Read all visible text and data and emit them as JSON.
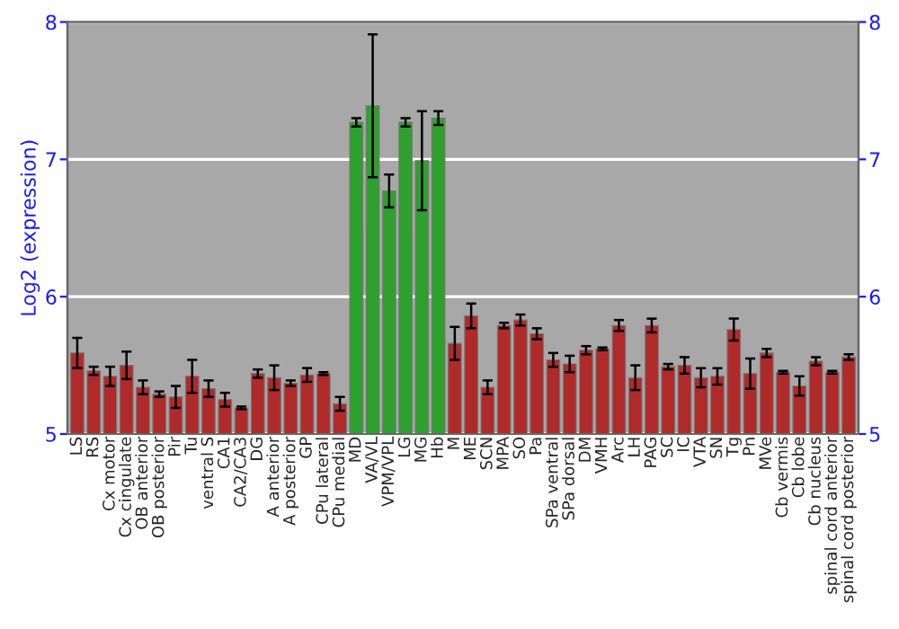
{
  "chart_data": {
    "type": "bar",
    "ylabel": "Log2 (expression)",
    "categories": [
      "LS",
      "RS",
      "Cx motor",
      "Cx cingulate",
      "OB anterior",
      "OB posterior",
      "Pir",
      "Tu",
      "ventral S",
      "CA1",
      "CA2/CA3",
      "DG",
      "A anterior",
      "A posterior",
      "GP",
      "CPu lateral",
      "CPu medial",
      "MD",
      "VA/VL",
      "VPM/VPL",
      "LG",
      "MG",
      "Hb",
      "M",
      "ME",
      "SCN",
      "MPA",
      "SO",
      "Pa",
      "SPa ventral",
      "SPa dorsal",
      "DM",
      "VMH",
      "Arc",
      "LH",
      "PAG",
      "SC",
      "IC",
      "VTA",
      "SN",
      "Tg",
      "Pn",
      "MVe",
      "Cb vermis",
      "Cb lobe",
      "Cb nucleus",
      "spinal cord anterior",
      "spinal cord posterior"
    ],
    "values": [
      5.59,
      5.46,
      5.42,
      5.5,
      5.34,
      5.29,
      5.27,
      5.42,
      5.33,
      5.25,
      5.19,
      5.44,
      5.41,
      5.37,
      5.43,
      5.44,
      5.22,
      7.27,
      7.39,
      6.77,
      7.27,
      6.99,
      7.3,
      5.66,
      5.86,
      5.34,
      5.79,
      5.83,
      5.73,
      5.54,
      5.51,
      5.61,
      5.62,
      5.79,
      5.41,
      5.79,
      5.49,
      5.5,
      5.41,
      5.42,
      5.76,
      5.44,
      5.59,
      5.45,
      5.35,
      5.53,
      5.45,
      5.56
    ],
    "errors": [
      0.11,
      0.03,
      0.07,
      0.1,
      0.05,
      0.02,
      0.08,
      0.12,
      0.06,
      0.05,
      0.01,
      0.03,
      0.09,
      0.02,
      0.05,
      0.01,
      0.05,
      0.03,
      0.52,
      0.12,
      0.03,
      0.36,
      0.05,
      0.12,
      0.09,
      0.05,
      0.02,
      0.04,
      0.04,
      0.05,
      0.06,
      0.03,
      0.01,
      0.04,
      0.09,
      0.05,
      0.02,
      0.06,
      0.07,
      0.06,
      0.08,
      0.11,
      0.03,
      0.01,
      0.07,
      0.03,
      0.01,
      0.02
    ],
    "colors": [
      "#b02a2a",
      "#b02a2a",
      "#b02a2a",
      "#b02a2a",
      "#b02a2a",
      "#b02a2a",
      "#b02a2a",
      "#b02a2a",
      "#b02a2a",
      "#b02a2a",
      "#b02a2a",
      "#b02a2a",
      "#b02a2a",
      "#b02a2a",
      "#b02a2a",
      "#b02a2a",
      "#b02a2a",
      "#2ea02e",
      "#2ea02e",
      "#2ea02e",
      "#2ea02e",
      "#2ea02e",
      "#2ea02e",
      "#b02a2a",
      "#b02a2a",
      "#b02a2a",
      "#b02a2a",
      "#b02a2a",
      "#b02a2a",
      "#b02a2a",
      "#b02a2a",
      "#b02a2a",
      "#b02a2a",
      "#b02a2a",
      "#b02a2a",
      "#b02a2a",
      "#b02a2a",
      "#b02a2a",
      "#b02a2a",
      "#b02a2a",
      "#b02a2a",
      "#b02a2a",
      "#b02a2a",
      "#b02a2a",
      "#b02a2a",
      "#b02a2a",
      "#b02a2a",
      "#b02a2a"
    ],
    "ylim": [
      5,
      8
    ],
    "yticks": [
      5,
      6,
      7,
      8
    ],
    "y2lim": [
      5,
      8
    ],
    "y2ticks": [
      5,
      6,
      7,
      8
    ],
    "grid": "y"
  }
}
